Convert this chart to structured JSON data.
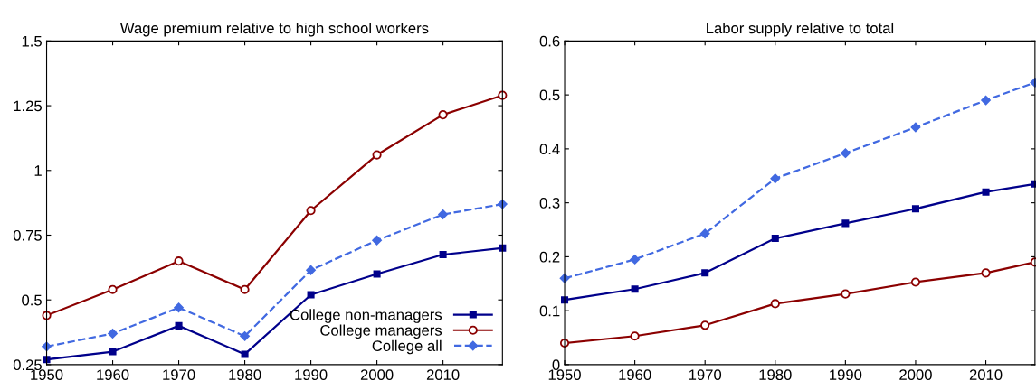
{
  "chart_data": [
    {
      "type": "line",
      "title": "Wage premium relative to high school workers",
      "x": [
        1950,
        1960,
        1970,
        1980,
        1990,
        2000,
        2010,
        2019
      ],
      "xlim": [
        1950,
        2019
      ],
      "xticks": [
        1950,
        1960,
        1970,
        1980,
        1990,
        2000,
        2010
      ],
      "ylim": [
        0.25,
        1.5
      ],
      "yticks": [
        0.25,
        0.5,
        0.75,
        1,
        1.25,
        1.5
      ],
      "grid": false,
      "legend": "bottom right",
      "series": [
        {
          "name": "College non-managers",
          "color": "#00008b",
          "marker": "square",
          "line_style": "solid",
          "values": [
            0.27,
            0.3,
            0.4,
            0.29,
            0.52,
            0.6,
            0.675,
            0.7
          ]
        },
        {
          "name": "College managers",
          "color": "#8b0000",
          "marker": "circle",
          "line_style": "solid",
          "values": [
            0.44,
            0.54,
            0.65,
            0.54,
            0.845,
            1.06,
            1.215,
            1.29
          ]
        },
        {
          "name": "College all",
          "color": "#4169e1",
          "marker": "diamond",
          "line_style": "dashed",
          "values": [
            0.32,
            0.37,
            0.47,
            0.36,
            0.615,
            0.73,
            0.83,
            0.87
          ]
        }
      ]
    },
    {
      "type": "line",
      "title": "Labor supply relative to total",
      "x": [
        1950,
        1960,
        1970,
        1980,
        1990,
        2000,
        2010,
        2017
      ],
      "xlim": [
        1950,
        2017
      ],
      "xticks": [
        1950,
        1960,
        1970,
        1980,
        1990,
        2000,
        2010
      ],
      "ylim": [
        0,
        0.6
      ],
      "yticks": [
        0,
        0.1,
        0.2,
        0.3,
        0.4,
        0.5,
        0.6
      ],
      "grid": false,
      "series": [
        {
          "color": "#00008b",
          "marker": "square",
          "line_style": "solid",
          "values": [
            0.12,
            0.14,
            0.17,
            0.234,
            0.262,
            0.289,
            0.32,
            0.335
          ]
        },
        {
          "color": "#8b0000",
          "marker": "circle",
          "line_style": "solid",
          "values": [
            0.04,
            0.053,
            0.073,
            0.113,
            0.131,
            0.153,
            0.17,
            0.19
          ]
        },
        {
          "color": "#4169e1",
          "marker": "diamond",
          "line_style": "dashed",
          "values": [
            0.16,
            0.195,
            0.243,
            0.345,
            0.392,
            0.44,
            0.49,
            0.523
          ]
        }
      ]
    }
  ]
}
